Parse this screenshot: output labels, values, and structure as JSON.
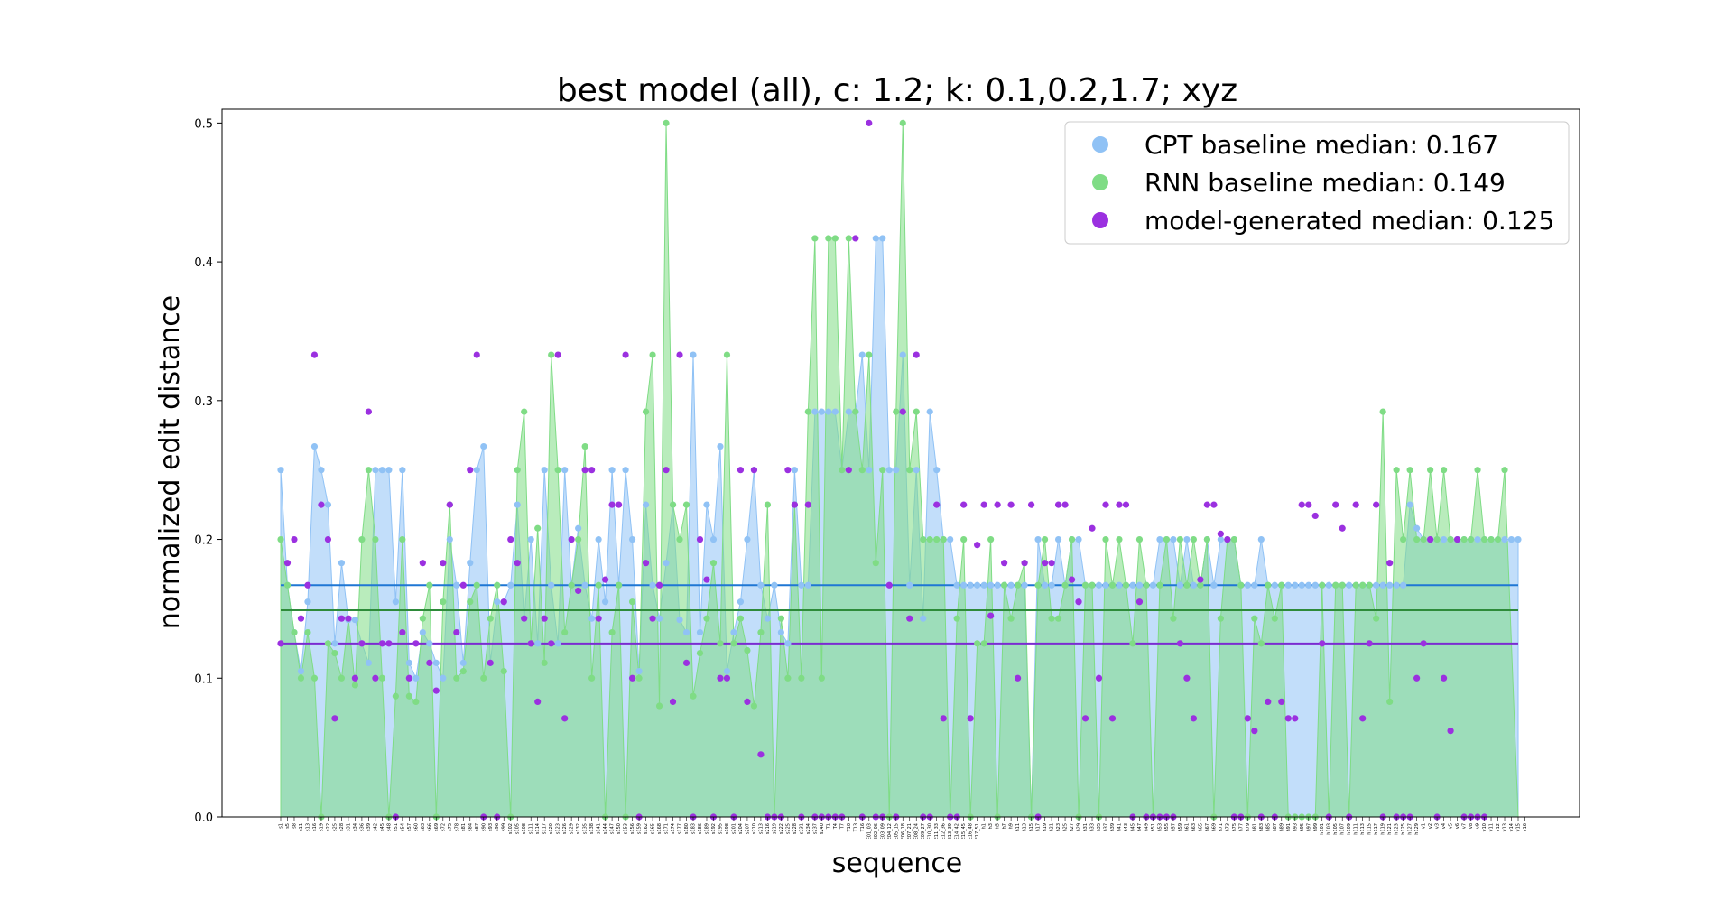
{
  "chart_data": {
    "type": "area",
    "title": "best model (all), c: 1.2; k: 0.1,0.2,1.7; xyz",
    "xlabel": "sequence",
    "ylabel": "normalized edit distance",
    "ylim": [
      0,
      0.51
    ],
    "yticks": [
      0.0,
      0.1,
      0.2,
      0.3,
      0.4,
      0.5
    ],
    "ytick_labels": [
      "0.0",
      "0.1",
      "0.2",
      "0.3",
      "0.4",
      "0.5"
    ],
    "grid": false,
    "legend_position": "top-right",
    "n_points": 184,
    "series": [
      {
        "name": "CPT baseline median: 0.167",
        "color": "#90c2f5",
        "median": 0.167,
        "median_color": "#1f77d4",
        "values": [
          0.25,
          0.167,
          0.133,
          0.105,
          0.155,
          0.267,
          0.25,
          0.225,
          0.125,
          0.183,
          0.142,
          0.142,
          0.125,
          0.111,
          0.25,
          0.25,
          0.25,
          0.155,
          0.25,
          0.111,
          0.1,
          0.133,
          0.125,
          0.111,
          0.1,
          0.2,
          0.167,
          0.111,
          0.183,
          0.25,
          0.267,
          0.111,
          0.155,
          0.155,
          0.167,
          0.225,
          0.143,
          0.2,
          0.125,
          0.25,
          0.167,
          0.125,
          0.25,
          0.167,
          0.208,
          0.167,
          0.143,
          0.2,
          0.155,
          0.25,
          0.167,
          0.25,
          0.2,
          0.105,
          0.225,
          0.167,
          0.143,
          0.183,
          0.225,
          0.142,
          0.133,
          0.333,
          0.133,
          0.225,
          0.2,
          0.267,
          0.105,
          0.133,
          0.155,
          0.2,
          0.25,
          0.167,
          0.143,
          0.167,
          0.133,
          0.125,
          0.25,
          0.167,
          0.167,
          0.292,
          0.292,
          0.292,
          0.292,
          0.25,
          0.292,
          0.292,
          0.333,
          0.25,
          0.417,
          0.417,
          0.25,
          0.25,
          0.333,
          0.167,
          0.25,
          0.143,
          0.292,
          0.25,
          0.2,
          0.2,
          0.167,
          0.167,
          0.167,
          0.167,
          0.167,
          0.167,
          0.167,
          0.167,
          0.167,
          0.167,
          0.167,
          0.0,
          0.2,
          0.167,
          0.167,
          0.2,
          0.167,
          0.2,
          0.2,
          0.167,
          0.167,
          0.167,
          0.167,
          0.167,
          0.167,
          0.167,
          0.167,
          0.167,
          0.167,
          0.167,
          0.2,
          0.2,
          0.2,
          0.167,
          0.2,
          0.167,
          0.167,
          0.2,
          0.167,
          0.2,
          0.2,
          0.2,
          0.167,
          0.167,
          0.167,
          0.2,
          0.167,
          0.167,
          0.167,
          0.167,
          0.167,
          0.167,
          0.167,
          0.167,
          0.167,
          0.167,
          0.167,
          0.167,
          0.167,
          0.167,
          0.167,
          0.167,
          0.167,
          0.167,
          0.167,
          0.167,
          0.167,
          0.225,
          0.208,
          0.2,
          0.2,
          0.2,
          0.2,
          0.2,
          0.2,
          0.2,
          0.2,
          0.2,
          0.2,
          0.2,
          0.2,
          0.2,
          0.2,
          0.2
        ]
      },
      {
        "name": "RNN baseline median: 0.149",
        "color": "#7fdc85",
        "median": 0.149,
        "median_color": "#2e8b3a",
        "values": [
          0.2,
          0.167,
          0.133,
          0.1,
          0.133,
          0.1,
          0.0,
          0.125,
          0.118,
          0.1,
          0.143,
          0.095,
          0.2,
          0.25,
          0.2,
          0.1,
          0.0,
          0.087,
          0.2,
          0.087,
          0.083,
          0.143,
          0.167,
          0.0,
          0.155,
          0.225,
          0.1,
          0.105,
          0.155,
          0.167,
          0.1,
          0.143,
          0.167,
          0.105,
          0.0,
          0.25,
          0.292,
          0.125,
          0.208,
          0.111,
          0.333,
          0.25,
          0.133,
          0.167,
          0.2,
          0.267,
          0.1,
          0.167,
          0.0,
          0.133,
          0.167,
          0.0,
          0.155,
          0.1,
          0.292,
          0.333,
          0.08,
          0.5,
          0.225,
          0.2,
          0.225,
          0.087,
          0.118,
          0.143,
          0.183,
          0.125,
          0.333,
          0.125,
          0.143,
          0.12,
          0.08,
          0.133,
          0.225,
          0.0,
          0.143,
          0.1,
          0.225,
          0.1,
          0.292,
          0.417,
          0.1,
          0.417,
          0.417,
          0.25,
          0.417,
          0.292,
          0.25,
          0.333,
          0.183,
          0.25,
          0.0,
          0.292,
          0.5,
          0.25,
          0.292,
          0.2,
          0.2,
          0.2,
          0.2,
          0.0,
          0.143,
          0.2,
          0.0,
          0.125,
          0.125,
          0.2,
          0.0,
          0.167,
          0.143,
          0.167,
          0.183,
          0.0,
          0.167,
          0.2,
          0.143,
          0.143,
          0.167,
          0.2,
          0.0,
          0.167,
          0.167,
          0.0,
          0.2,
          0.167,
          0.2,
          0.167,
          0.125,
          0.2,
          0.167,
          0.0,
          0.167,
          0.2,
          0.143,
          0.2,
          0.167,
          0.2,
          0.167,
          0.2,
          0.0,
          0.143,
          0.2,
          0.2,
          0.167,
          0.0,
          0.143,
          0.125,
          0.167,
          0.143,
          0.167,
          0.0,
          0.0,
          0.0,
          0.0,
          0.0,
          0.167,
          0.0,
          0.167,
          0.167,
          0.0,
          0.167,
          0.167,
          0.167,
          0.143,
          0.292,
          0.083,
          0.25,
          0.2,
          0.25,
          0.2,
          0.2,
          0.25,
          0.2,
          0.25,
          0.2,
          0.2,
          0.2,
          0.2,
          0.25,
          0.2,
          0.2,
          0.2,
          0.25
        ]
      },
      {
        "name": "model-generated median: 0.125",
        "color": "#9b30e0",
        "median": 0.125,
        "median_color": "#7b2bd1",
        "values": [
          0.125,
          0.183,
          0.2,
          0.143,
          0.167,
          0.333,
          0.225,
          0.2,
          0.071,
          0.143,
          0.143,
          0.1,
          0.125,
          0.292,
          0.1,
          0.125,
          0.125,
          0.0,
          0.133,
          0.1,
          0.125,
          0.183,
          0.111,
          0.091,
          0.183,
          0.225,
          0.133,
          0.167,
          0.25,
          0.333,
          0.0,
          0.111,
          0.0,
          0.155,
          0.2,
          0.183,
          0.143,
          0.125,
          0.083,
          0.143,
          0.125,
          0.333,
          0.071,
          0.2,
          0.163,
          0.25,
          0.25,
          0.143,
          0.171,
          0.225,
          0.225,
          0.333,
          0.1,
          0.0,
          0.183,
          0.143,
          0.167,
          0.25,
          0.083,
          0.333,
          0.111,
          0.0,
          0.2,
          0.171,
          0.0,
          0.1,
          0.1,
          0.0,
          0.25,
          0.083,
          0.25,
          0.045,
          0.0,
          0.0,
          0.0,
          0.25,
          0.225,
          0.0,
          0.225,
          0.0,
          0.0,
          0.0,
          0.0,
          0.0,
          0.25,
          0.417,
          0.0,
          0.5,
          0.0,
          0.0,
          0.167,
          0.0,
          0.292,
          0.143,
          0.333,
          0.0,
          0.0,
          0.225,
          0.071,
          0.0,
          0.0,
          0.225,
          0.071,
          0.196,
          0.225,
          0.145,
          0.225,
          0.183,
          0.225,
          0.1,
          0.183,
          0.225,
          0.0,
          0.183,
          0.183,
          0.225,
          0.225,
          0.171,
          0.155,
          0.071,
          0.208,
          0.1,
          0.225,
          0.071,
          0.225,
          0.225,
          0.0,
          0.155,
          0.0,
          0.0,
          0.0,
          0.0,
          0.0,
          0.125,
          0.1,
          0.071,
          0.171,
          0.225,
          0.225,
          0.204,
          0.2,
          0.0,
          0.0,
          0.071,
          0.062,
          0.0,
          0.083,
          0.0,
          0.083,
          0.071,
          0.071,
          0.225,
          0.225,
          0.217,
          0.125,
          0.0,
          0.225,
          0.208,
          0.0,
          0.225,
          0.071,
          0.125,
          0.225,
          0.0,
          0.183,
          0.0,
          0.0,
          0.0,
          0.1,
          0.125,
          0.2,
          0.0,
          0.1,
          0.062,
          0.2,
          0.0,
          0.0,
          0.0,
          0.0
        ]
      }
    ],
    "x_tick_labels": [
      "s1",
      "s5",
      "s8",
      "s11",
      "s13",
      "s16",
      "s19",
      "s22",
      "s25",
      "s28",
      "s31",
      "s34",
      "s36",
      "s39",
      "s42",
      "s45",
      "s48",
      "s51",
      "s54",
      "s57",
      "s60",
      "s63",
      "s66",
      "s69",
      "s72",
      "s75",
      "s78",
      "s81",
      "s84",
      "s87",
      "s90",
      "s93",
      "s96",
      "s99",
      "s102",
      "s105",
      "s108",
      "s111",
      "s114",
      "s117",
      "s120",
      "s123",
      "s126",
      "s129",
      "s132",
      "s135",
      "s138",
      "s141",
      "s144",
      "s147",
      "s150",
      "s153",
      "s156",
      "s159",
      "s162",
      "s165",
      "s168",
      "s171",
      "s174",
      "s177",
      "s180",
      "s183",
      "s186",
      "s189",
      "s192",
      "s195",
      "s198",
      "s201",
      "s204",
      "s207",
      "s210",
      "s213",
      "s216",
      "s219",
      "s222",
      "s225",
      "s228",
      "s231",
      "s234",
      "s237",
      "s240",
      "T1",
      "T4",
      "T7",
      "T10",
      "T13",
      "T16",
      "E01_03",
      "E02_06",
      "E03_09",
      "E04_12",
      "E05_15",
      "E06_18",
      "E07_21",
      "E08_24",
      "E09_27",
      "E10_30",
      "E11_33",
      "E12_36",
      "E13_39",
      "E14_42",
      "E15_45",
      "E16_48",
      "E17_51",
      "h1",
      "h3",
      "h5",
      "h7",
      "h9",
      "h11",
      "h13",
      "h15",
      "h17",
      "h19",
      "h21",
      "h23",
      "h25",
      "h27",
      "h29",
      "h31",
      "h33",
      "h35",
      "h37",
      "h39",
      "h41",
      "h43",
      "h45",
      "h47",
      "h49",
      "h51",
      "h53",
      "h55",
      "h57",
      "h59",
      "h61",
      "h63",
      "h65",
      "h67",
      "h69",
      "h71",
      "h73",
      "h75",
      "h77",
      "h79",
      "h81",
      "h83",
      "h85",
      "h87",
      "h89",
      "h91",
      "h93",
      "h95",
      "h97",
      "h99",
      "h101",
      "h103",
      "h105",
      "h107",
      "h109",
      "h111",
      "h113",
      "h115",
      "h117",
      "h119",
      "h121",
      "h123",
      "h125",
      "h127",
      "h129",
      "v1",
      "v2",
      "v3",
      "v4",
      "v5",
      "v6",
      "v7",
      "v8",
      "v9",
      "v10",
      "v11",
      "v12",
      "v13",
      "v14",
      "v15",
      "v16"
    ]
  }
}
